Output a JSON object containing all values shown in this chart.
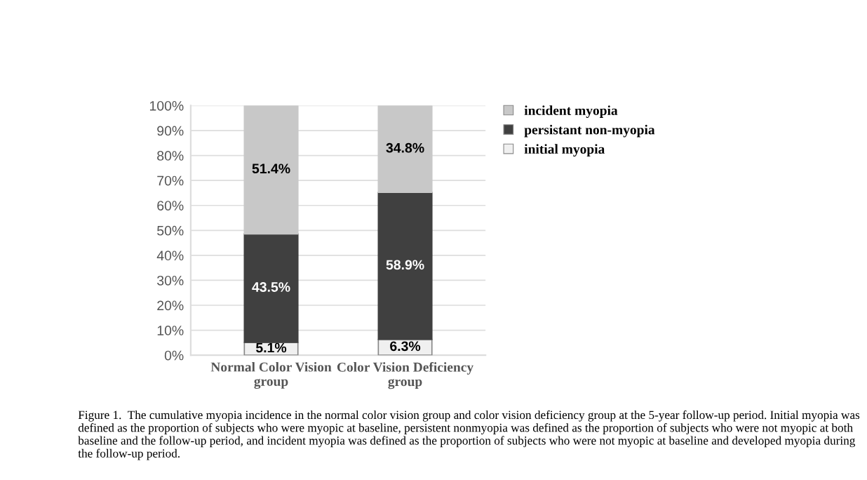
{
  "chart_data": {
    "type": "bar",
    "stacked": true,
    "categories": [
      "Normal Color Vision group",
      "Color Vision Deficiency group"
    ],
    "series": [
      {
        "name": "initial myopia",
        "color": "#f0f0f0",
        "values": [
          5.1,
          6.3
        ],
        "value_labels": [
          "5.1%",
          "6.3%"
        ]
      },
      {
        "name": "persistant non-myopia",
        "color": "#404040",
        "values": [
          43.5,
          58.9
        ],
        "value_labels": [
          "43.5%",
          "58.9%"
        ]
      },
      {
        "name": "incident myopia",
        "color": "#c8c8c8",
        "values": [
          51.4,
          34.8
        ],
        "value_labels": [
          "51.4%",
          "34.8%"
        ]
      }
    ],
    "ylim": [
      0,
      100
    ],
    "yticks": [
      {
        "value": 0,
        "label": "0%"
      },
      {
        "value": 10,
        "label": "10%"
      },
      {
        "value": 20,
        "label": "20%"
      },
      {
        "value": 30,
        "label": "30%"
      },
      {
        "value": 40,
        "label": "40%"
      },
      {
        "value": 50,
        "label": "50%"
      },
      {
        "value": 60,
        "label": "60%"
      },
      {
        "value": 70,
        "label": "70%"
      },
      {
        "value": 80,
        "label": "80%"
      },
      {
        "value": 90,
        "label": "90%"
      },
      {
        "value": 100,
        "label": "100%"
      }
    ],
    "grid": "y",
    "legend": "top right",
    "annotations": [
      "Figure 1.  The cumulative myopia incidence in the normal color vision group and color vision deficiency group at the 5-year follow-up period. Initial myopia was defined as the proportion of subjects who were myopic at baseline, persistent nonmyopia was defined as the proportion of subjects who were not myopic at both baseline and the follow-up period, and incident myopia was defined as the proportion of subjects who were not myopic at baseline and developed myopia during the follow-up period."
    ]
  }
}
